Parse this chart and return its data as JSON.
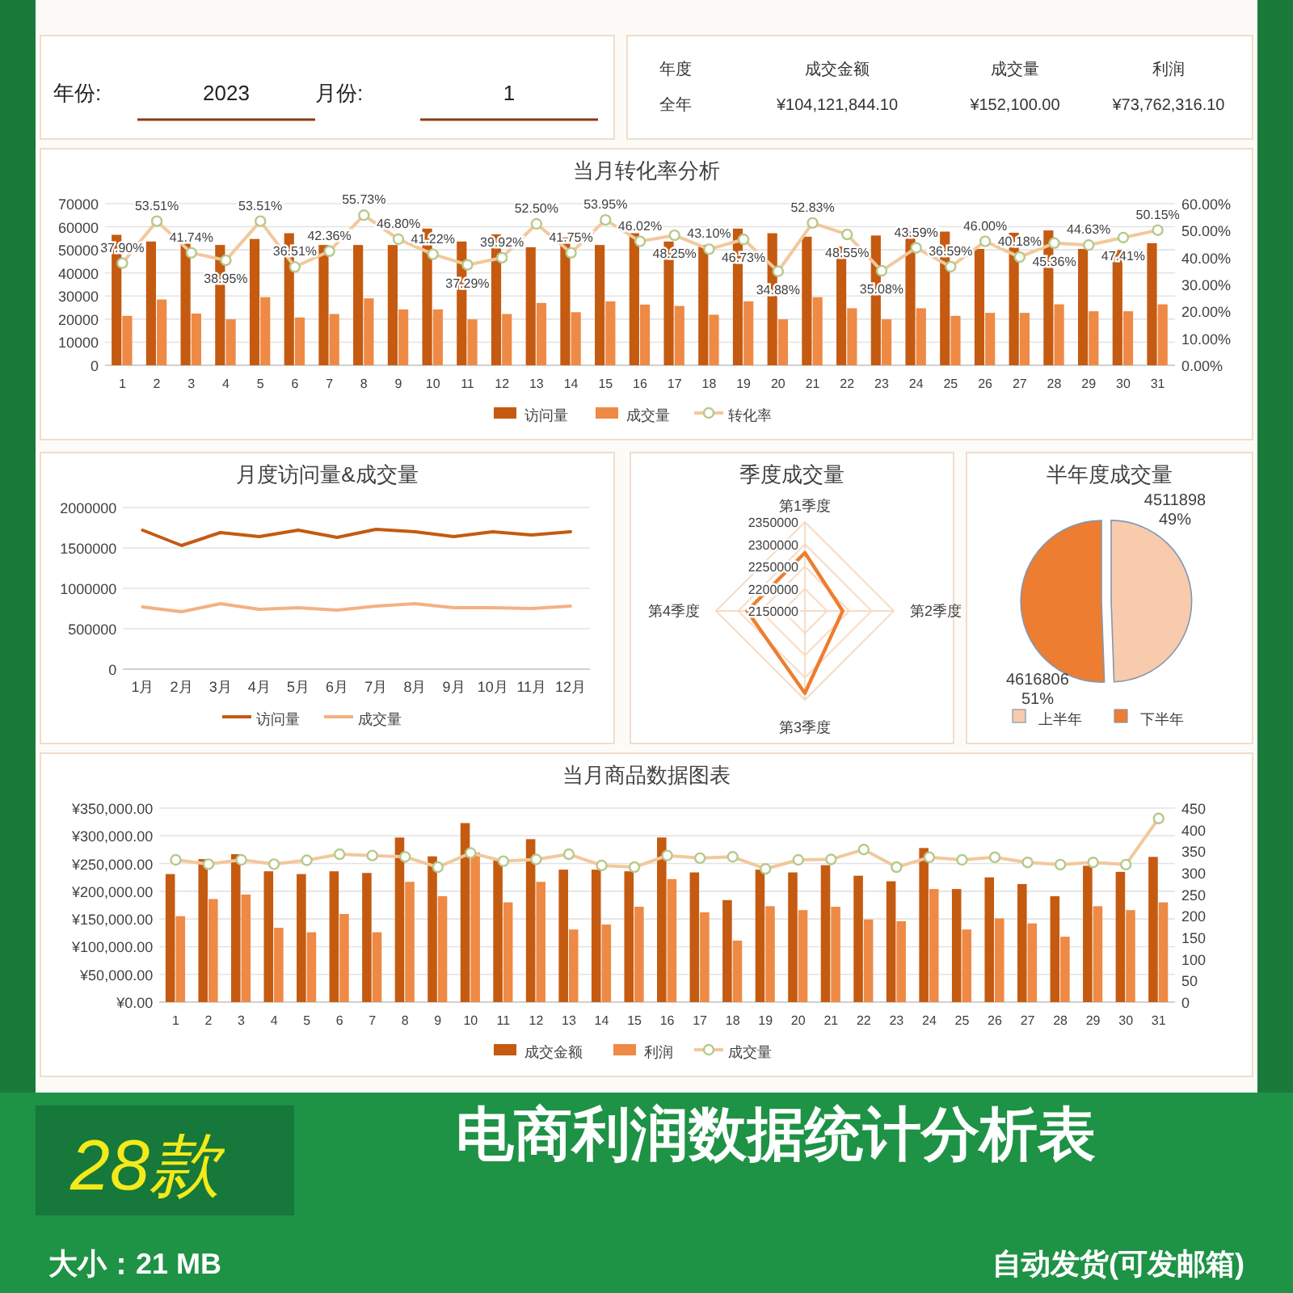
{
  "chart_data": [
    {
      "type": "other",
      "annotations": [
        "年份:",
        "2023",
        "月份:",
        "1"
      ]
    },
    {
      "type": "other",
      "annotations": [
        "年度",
        "成交金额",
        "成交量",
        "利润",
        "全年",
        "¥104,121,844.10",
        "¥152,100.00",
        "¥73,762,316.10"
      ]
    },
    {
      "type": "bar",
      "title": "当月转化率分析",
      "categories": [
        "1",
        "2",
        "3",
        "4",
        "5",
        "6",
        "7",
        "8",
        "9",
        "10",
        "11",
        "12",
        "13",
        "14",
        "15",
        "16",
        "17",
        "18",
        "19",
        "20",
        "21",
        "22",
        "23",
        "24",
        "25",
        "26",
        "27",
        "28",
        "29",
        "30",
        "31"
      ],
      "series": [
        {
          "name": "访问量",
          "color": "#c55a11",
          "values": [
            56500,
            53600,
            53600,
            52100,
            54700,
            57200,
            52100,
            52100,
            52100,
            59200,
            53600,
            56700,
            51100,
            55400,
            52100,
            57200,
            53600,
            52100,
            59200,
            57200,
            55700,
            51400,
            56200,
            57900,
            57900,
            50400,
            57400,
            58400,
            50400,
            49900,
            52900
          ]
        },
        {
          "name": "成交量",
          "color": "#ee8a45",
          "values": [
            21400,
            28500,
            22400,
            19900,
            29500,
            20700,
            22200,
            29000,
            24200,
            24200,
            19900,
            22200,
            27000,
            23000,
            27700,
            26300,
            25700,
            21900,
            27700,
            19900,
            29500,
            24700,
            19900,
            24700,
            21400,
            22700,
            22700,
            26400,
            23400,
            23400,
            26400
          ]
        },
        {
          "name": "转化率",
          "type": "line",
          "axis": "y2",
          "marker": "circle",
          "color": "#f2c89c",
          "values": [
            37.9,
            53.51,
            41.74,
            38.95,
            53.51,
            36.51,
            42.36,
            55.73,
            46.8,
            41.22,
            37.29,
            39.92,
            52.5,
            41.75,
            53.95,
            46.02,
            48.25,
            43.1,
            46.73,
            34.88,
            52.83,
            48.55,
            35.08,
            43.59,
            36.59,
            46.0,
            40.18,
            45.36,
            44.63,
            47.41,
            50.15
          ],
          "value_labels": [
            "37.90%",
            "53.51%",
            "41.74%",
            "38.95%",
            "53.51%",
            "36.51%",
            "42.36%",
            "55.73%",
            "46.80%",
            "41.22%",
            "37.29%",
            "39.92%",
            "52.50%",
            "41.75%",
            "53.95%",
            "46.02%",
            "48.25%",
            "43.10%",
            "46.73%",
            "34.88%",
            "52.83%",
            "48.55%",
            "35.08%",
            "43.59%",
            "36.59%",
            "46.00%",
            "40.18%",
            "45.36%",
            "44.63%",
            "47.41%",
            "50.15%"
          ]
        }
      ],
      "ylim": [
        0,
        70000
      ],
      "yticks": [
        0,
        10000,
        20000,
        30000,
        40000,
        50000,
        60000,
        70000
      ],
      "y2lim": [
        0,
        60
      ],
      "y2ticks": [
        {
          "value": 0,
          "label": "0.00%"
        },
        {
          "value": 10,
          "label": "10.00%"
        },
        {
          "value": 20,
          "label": "20.00%"
        },
        {
          "value": 30,
          "label": "30.00%"
        },
        {
          "value": 40,
          "label": "40.00%"
        },
        {
          "value": 50,
          "label": "50.00%"
        },
        {
          "value": 60,
          "label": "60.00%"
        }
      ],
      "grid": "y",
      "legend": "bottom"
    },
    {
      "type": "line",
      "title": "月度访问量&成交量",
      "categories": [
        "1月",
        "2月",
        "3月",
        "4月",
        "5月",
        "6月",
        "7月",
        "8月",
        "9月",
        "10月",
        "11月",
        "12月"
      ],
      "series": [
        {
          "name": "访问量",
          "color": "#c55a11",
          "values": [
            1720000,
            1530000,
            1690000,
            1640000,
            1720000,
            1630000,
            1730000,
            1700000,
            1640000,
            1700000,
            1660000,
            1700000
          ]
        },
        {
          "name": "成交量",
          "color": "#f4b183",
          "values": [
            770000,
            710000,
            810000,
            740000,
            760000,
            730000,
            780000,
            810000,
            760000,
            760000,
            750000,
            780000
          ]
        }
      ],
      "ylim": [
        0,
        2000000
      ],
      "yticks": [
        0,
        500000,
        1000000,
        1500000,
        2000000
      ],
      "grid": "y",
      "legend": "bottom"
    },
    {
      "type": "radar",
      "title": "季度成交量",
      "categories": [
        "第1季度",
        "第2季度",
        "第3季度",
        "第4季度"
      ],
      "series": [
        {
          "color": "#ed7d31",
          "values": [
            2281000,
            2235000,
            2335000,
            2280000
          ]
        }
      ],
      "ylim": [
        2150000,
        2350000
      ],
      "yticks": [
        2150000,
        2200000,
        2250000,
        2300000,
        2350000
      ]
    },
    {
      "type": "pie",
      "title": "半年度成交量",
      "categories": [
        "上半年",
        "下半年"
      ],
      "values": [
        4511898,
        4616806
      ],
      "colors": [
        "#f8cbad",
        "#ed7d31"
      ],
      "value_labels": [
        "4511898\n49%",
        "4616806\n51%"
      ],
      "legend": "bottom"
    },
    {
      "type": "bar",
      "title": "当月商品数据图表",
      "categories": [
        "1",
        "2",
        "3",
        "4",
        "5",
        "6",
        "7",
        "8",
        "9",
        "10",
        "11",
        "12",
        "13",
        "14",
        "15",
        "16",
        "17",
        "18",
        "19",
        "20",
        "21",
        "22",
        "23",
        "24",
        "25",
        "26",
        "27",
        "28",
        "29",
        "30",
        "31"
      ],
      "series": [
        {
          "name": "成交金额",
          "color": "#c55a11",
          "values": [
            231000,
            258000,
            267000,
            236000,
            231000,
            236000,
            233000,
            297000,
            263000,
            323000,
            256000,
            294000,
            239000,
            239000,
            236000,
            297000,
            234000,
            184000,
            239000,
            234000,
            247000,
            228000,
            218000,
            278000,
            204000,
            225000,
            213000,
            191000,
            246000,
            235000,
            262000
          ]
        },
        {
          "name": "利润",
          "color": "#ee8a45",
          "values": [
            155000,
            186000,
            194000,
            134000,
            126000,
            159000,
            126000,
            217000,
            191000,
            270000,
            180000,
            217000,
            131000,
            140000,
            172000,
            222000,
            162000,
            111000,
            173000,
            166000,
            172000,
            149000,
            146000,
            204000,
            131000,
            151000,
            142000,
            118000,
            173000,
            166000,
            180000
          ]
        },
        {
          "name": "成交量",
          "type": "line",
          "axis": "y2",
          "marker": "circle",
          "color": "#f2c89c",
          "values": [
            330,
            320,
            330,
            320,
            329,
            343,
            340,
            337,
            313,
            346,
            327,
            331,
            343,
            317,
            313,
            340,
            334,
            337,
            309,
            330,
            331,
            354,
            313,
            336,
            330,
            336,
            324,
            319,
            324,
            319,
            426
          ]
        }
      ],
      "ylim": [
        0,
        350000
      ],
      "yticks": [
        {
          "value": 0,
          "label": "¥0.00"
        },
        {
          "value": 50000,
          "label": "¥50,000.00"
        },
        {
          "value": 100000,
          "label": "¥100,000.00"
        },
        {
          "value": 150000,
          "label": "¥150,000.00"
        },
        {
          "value": 200000,
          "label": "¥200,000.00"
        },
        {
          "value": 250000,
          "label": "¥250,000.00"
        },
        {
          "value": 300000,
          "label": "¥300,000.00"
        },
        {
          "value": 350000,
          "label": "¥350,000.00"
        }
      ],
      "y2lim": [
        0,
        450
      ],
      "y2ticks": [
        0,
        50,
        100,
        150,
        200,
        250,
        300,
        350,
        400,
        450
      ],
      "grid": "y",
      "legend": "bottom"
    },
    {
      "type": "other",
      "title": "电商利润数据统计分析表",
      "annotations": [
        "28款",
        "大小：21 MB",
        "自动发货(可发邮箱)"
      ]
    }
  ]
}
